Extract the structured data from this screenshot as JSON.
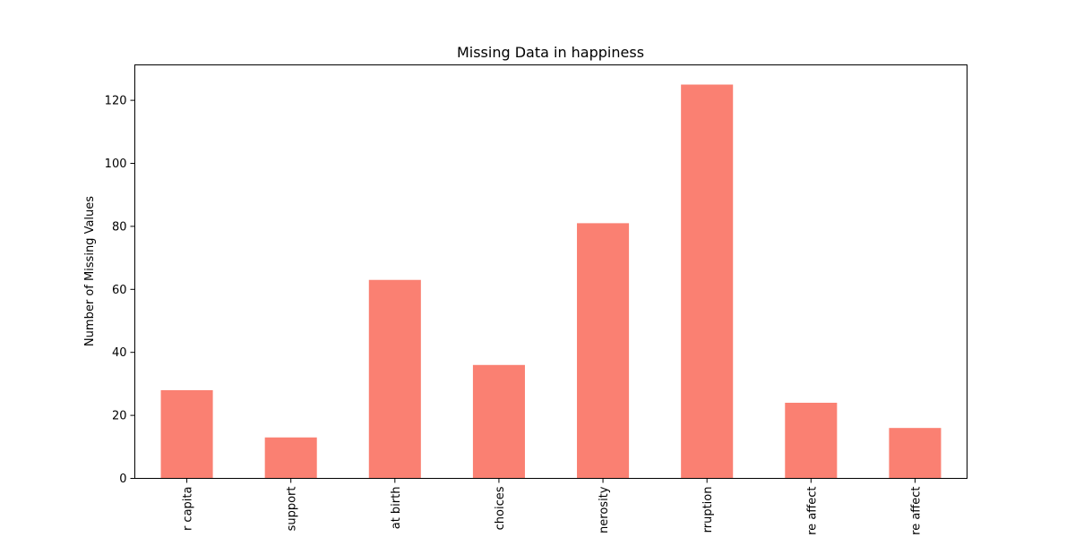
{
  "chart_data": {
    "type": "bar",
    "title": "Missing Data in happiness",
    "xlabel": "",
    "ylabel": "Number of Missing Values",
    "categories": [
      "r capita",
      "support",
      "at birth",
      "choices",
      "nerosity",
      "rruption",
      "re affect",
      "re affect"
    ],
    "values": [
      28,
      13,
      63,
      36,
      81,
      125,
      24,
      16
    ],
    "ylim": [
      0,
      131.25
    ],
    "yticks": [
      0,
      20,
      40,
      60,
      80,
      100,
      120
    ],
    "grid": false,
    "legend": "none",
    "bar_color": "#fa8072"
  }
}
